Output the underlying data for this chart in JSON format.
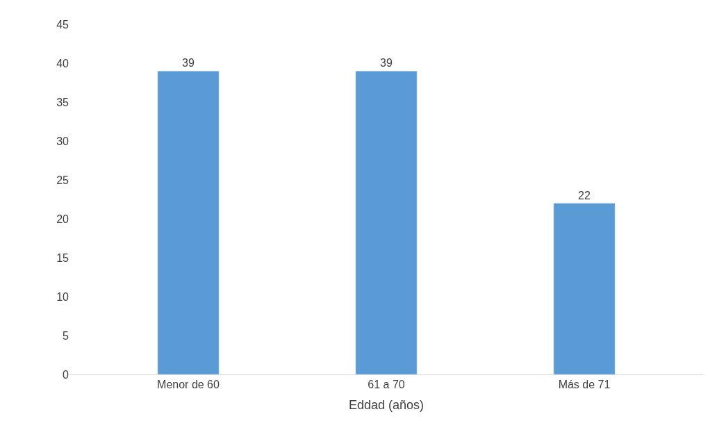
{
  "chart_data": {
    "type": "bar",
    "xlabel": "Eddad (años)",
    "categories": [
      "Menor de 60",
      "61 a 70",
      "Más de 71"
    ],
    "values": [
      39,
      39,
      22
    ],
    "color": "#5b9bd5",
    "ylim": [
      0,
      45
    ],
    "yticks": [
      0,
      5,
      10,
      15,
      20,
      25,
      30,
      35,
      40,
      45
    ],
    "grid": false,
    "data_labels": true
  }
}
